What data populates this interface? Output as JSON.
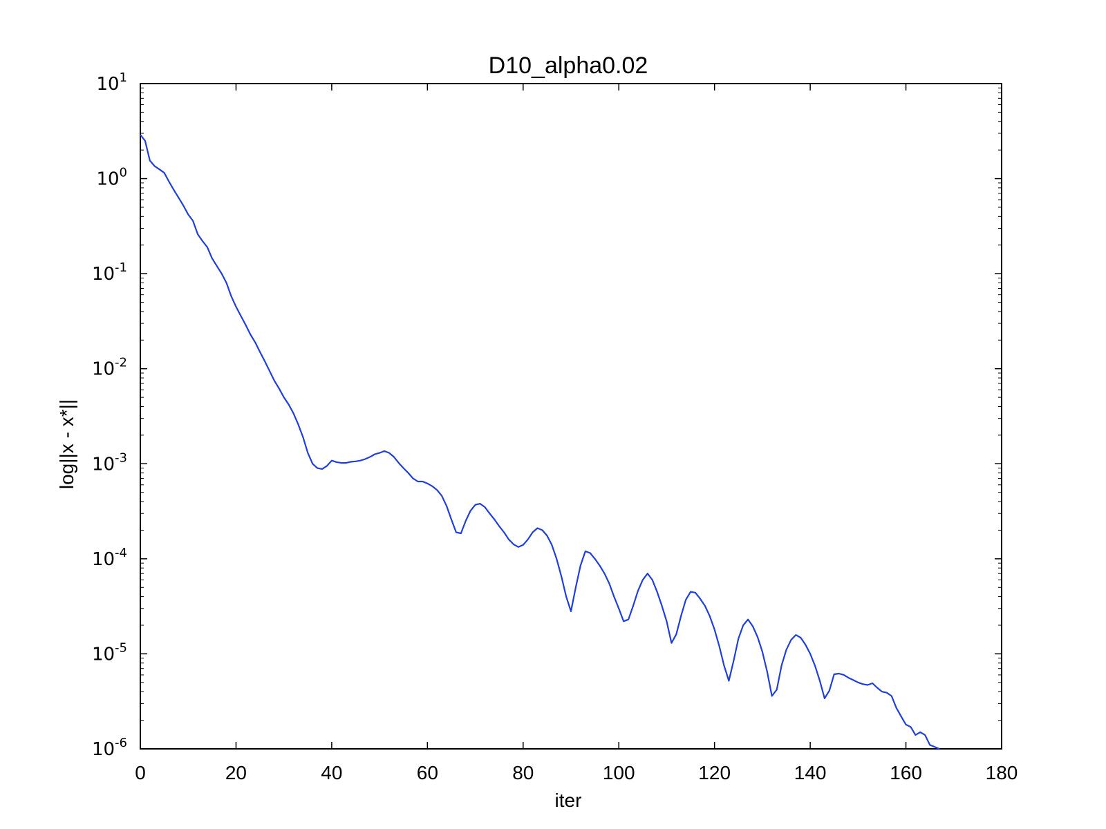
{
  "chart_data": {
    "type": "line",
    "title": "D10_alpha0.02",
    "xlabel": "iter",
    "ylabel": "log||x - x*||",
    "xlim": [
      0,
      180
    ],
    "ylim": [
      1e-06,
      10
    ],
    "yscale": "log",
    "grid": false,
    "x_ticks": [
      "0",
      "20",
      "40",
      "60",
      "80",
      "100",
      "120",
      "140",
      "160",
      "180"
    ],
    "y_ticks": [
      {
        "base": "10",
        "exp": "1"
      },
      {
        "base": "10",
        "exp": "0"
      },
      {
        "base": "10",
        "exp": "-1"
      },
      {
        "base": "10",
        "exp": "-2"
      },
      {
        "base": "10",
        "exp": "-3"
      },
      {
        "base": "10",
        "exp": "-4"
      },
      {
        "base": "10",
        "exp": "-5"
      },
      {
        "base": "10",
        "exp": "-6"
      }
    ],
    "series": [
      {
        "color": "#1f3fd8",
        "points": [
          [
            0,
            2.9
          ],
          [
            1,
            2.5
          ],
          [
            2,
            1.55
          ],
          [
            3,
            1.35
          ],
          [
            4,
            1.25
          ],
          [
            5,
            1.15
          ],
          [
            6,
            0.93
          ],
          [
            7,
            0.76
          ],
          [
            8,
            0.63
          ],
          [
            9,
            0.52
          ],
          [
            10,
            0.42
          ],
          [
            11,
            0.36
          ],
          [
            12,
            0.26
          ],
          [
            13,
            0.22
          ],
          [
            14,
            0.19
          ],
          [
            15,
            0.145
          ],
          [
            16,
            0.12
          ],
          [
            17,
            0.1
          ],
          [
            18,
            0.08
          ],
          [
            19,
            0.058
          ],
          [
            20,
            0.045
          ],
          [
            21,
            0.036
          ],
          [
            22,
            0.029
          ],
          [
            23,
            0.023
          ],
          [
            24,
            0.019
          ],
          [
            25,
            0.015
          ],
          [
            26,
            0.012
          ],
          [
            27,
            0.0095
          ],
          [
            28,
            0.0075
          ],
          [
            29,
            0.0062
          ],
          [
            30,
            0.005
          ],
          [
            31,
            0.0042
          ],
          [
            32,
            0.0034
          ],
          [
            33,
            0.0026
          ],
          [
            34,
            0.0019
          ],
          [
            35,
            0.0013
          ],
          [
            36,
            0.001
          ],
          [
            37,
            0.0009
          ],
          [
            38,
            0.00088
          ],
          [
            39,
            0.00095
          ],
          [
            40,
            0.00108
          ],
          [
            41,
            0.00104
          ],
          [
            42,
            0.00102
          ],
          [
            43,
            0.00102
          ],
          [
            44,
            0.00105
          ],
          [
            45,
            0.00106
          ],
          [
            46,
            0.00108
          ],
          [
            47,
            0.00112
          ],
          [
            48,
            0.00118
          ],
          [
            49,
            0.00126
          ],
          [
            50,
            0.0013
          ],
          [
            51,
            0.00136
          ],
          [
            52,
            0.0013
          ],
          [
            53,
            0.00118
          ],
          [
            54,
            0.00102
          ],
          [
            55,
            0.0009
          ],
          [
            56,
            0.0008
          ],
          [
            57,
            0.0007
          ],
          [
            58,
            0.00065
          ],
          [
            59,
            0.00065
          ],
          [
            60,
            0.00062
          ],
          [
            61,
            0.00058
          ],
          [
            62,
            0.00053
          ],
          [
            63,
            0.00046
          ],
          [
            64,
            0.00036
          ],
          [
            65,
            0.00026
          ],
          [
            66,
            0.00019
          ],
          [
            67,
            0.000185
          ],
          [
            68,
            0.00025
          ],
          [
            69,
            0.00032
          ],
          [
            70,
            0.00037
          ],
          [
            71,
            0.00038
          ],
          [
            72,
            0.00035
          ],
          [
            73,
            0.0003
          ],
          [
            74,
            0.00026
          ],
          [
            75,
            0.00022
          ],
          [
            76,
            0.00019
          ],
          [
            77,
            0.00016
          ],
          [
            78,
            0.000142
          ],
          [
            79,
            0.000133
          ],
          [
            80,
            0.00014
          ],
          [
            81,
            0.00016
          ],
          [
            82,
            0.00019
          ],
          [
            83,
            0.00021
          ],
          [
            84,
            0.0002
          ],
          [
            85,
            0.000175
          ],
          [
            86,
            0.00014
          ],
          [
            87,
            0.0001
          ],
          [
            88,
            6.5e-05
          ],
          [
            89,
            4e-05
          ],
          [
            90,
            2.8e-05
          ],
          [
            91,
            5e-05
          ],
          [
            92,
            8.5e-05
          ],
          [
            93,
            0.00012
          ],
          [
            94,
            0.000115
          ],
          [
            95,
            0.0001
          ],
          [
            96,
            8.5e-05
          ],
          [
            97,
            7e-05
          ],
          [
            98,
            5.5e-05
          ],
          [
            99,
            4e-05
          ],
          [
            100,
            3e-05
          ],
          [
            101,
            2.2e-05
          ],
          [
            102,
            2.3e-05
          ],
          [
            103,
            3.2e-05
          ],
          [
            104,
            4.6e-05
          ],
          [
            105,
            6e-05
          ],
          [
            106,
            7e-05
          ],
          [
            107,
            6e-05
          ],
          [
            108,
            4.5e-05
          ],
          [
            109,
            3.2e-05
          ],
          [
            110,
            2.2e-05
          ],
          [
            111,
            1.3e-05
          ],
          [
            112,
            1.6e-05
          ],
          [
            113,
            2.5e-05
          ],
          [
            114,
            3.7e-05
          ],
          [
            115,
            4.5e-05
          ],
          [
            116,
            4.4e-05
          ],
          [
            117,
            3.8e-05
          ],
          [
            118,
            3.2e-05
          ],
          [
            119,
            2.5e-05
          ],
          [
            120,
            1.8e-05
          ],
          [
            121,
            1.2e-05
          ],
          [
            122,
            7.5e-06
          ],
          [
            123,
            5.2e-06
          ],
          [
            124,
            8.5e-06
          ],
          [
            125,
            1.45e-05
          ],
          [
            126,
            2e-05
          ],
          [
            127,
            2.3e-05
          ],
          [
            128,
            1.95e-05
          ],
          [
            129,
            1.5e-05
          ],
          [
            130,
            1.05e-05
          ],
          [
            131,
            6.5e-06
          ],
          [
            132,
            3.6e-06
          ],
          [
            133,
            4.2e-06
          ],
          [
            134,
            7.5e-06
          ],
          [
            135,
            1.1e-05
          ],
          [
            136,
            1.4e-05
          ],
          [
            137,
            1.58e-05
          ],
          [
            138,
            1.48e-05
          ],
          [
            139,
            1.25e-05
          ],
          [
            140,
            1e-05
          ],
          [
            141,
            7.5e-06
          ],
          [
            142,
            5.2e-06
          ],
          [
            143,
            3.4e-06
          ],
          [
            144,
            4.1e-06
          ],
          [
            145,
            6.1e-06
          ],
          [
            146,
            6.2e-06
          ],
          [
            147,
            6e-06
          ],
          [
            148,
            5.6e-06
          ],
          [
            149,
            5.3e-06
          ],
          [
            150,
            5e-06
          ],
          [
            151,
            4.8e-06
          ],
          [
            152,
            4.7e-06
          ],
          [
            153,
            4.9e-06
          ],
          [
            154,
            4.4e-06
          ],
          [
            155,
            4e-06
          ],
          [
            156,
            3.9e-06
          ],
          [
            157,
            3.6e-06
          ],
          [
            158,
            2.7e-06
          ],
          [
            159,
            2.2e-06
          ],
          [
            160,
            1.8e-06
          ],
          [
            161,
            1.7e-06
          ],
          [
            162,
            1.4e-06
          ],
          [
            163,
            1.5e-06
          ],
          [
            164,
            1.4e-06
          ],
          [
            165,
            1.1e-06
          ],
          [
            166,
            1.05e-06
          ],
          [
            167,
            1e-06
          ]
        ]
      }
    ]
  }
}
